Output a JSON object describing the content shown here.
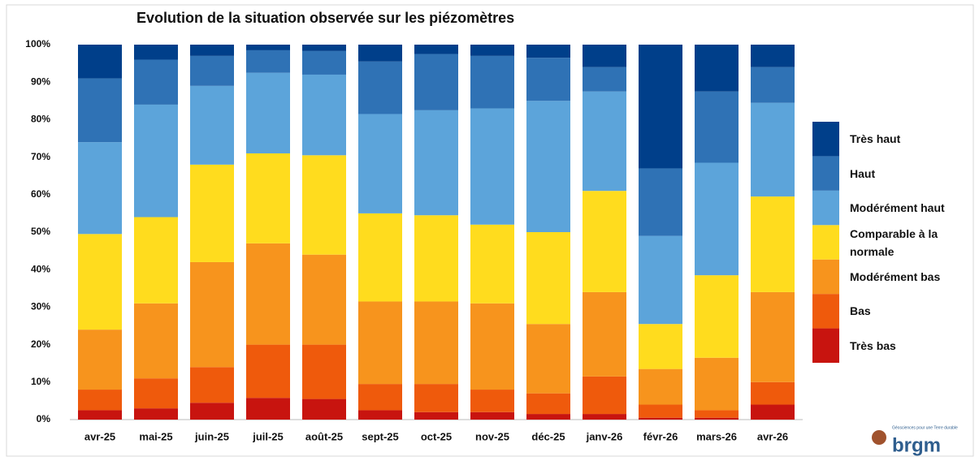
{
  "chart_data": {
    "type": "stacked_bar",
    "title": "Evolution de la situation observée sur les piézomètres",
    "categories": [
      "avr-25",
      "mai-25",
      "juin-25",
      "juil-25",
      "août-25",
      "sept-25",
      "oct-25",
      "nov-25",
      "déc-25",
      "janv-26",
      "févr-26",
      "mars-26",
      "avr-26"
    ],
    "series": [
      {
        "name": "Très bas",
        "color": "#c8140f",
        "values": [
          2.5,
          3,
          4.5,
          5.8,
          5.5,
          2.5,
          2,
          2,
          1.5,
          1.5,
          0.5,
          0.5,
          4
        ]
      },
      {
        "name": "Bas",
        "color": "#ef5a0c",
        "values": [
          5.5,
          8,
          9.5,
          14.2,
          14.5,
          7,
          7.5,
          6,
          5.5,
          10,
          3.5,
          2,
          6
        ]
      },
      {
        "name": "Modérément bas",
        "color": "#f7941d",
        "values": [
          16,
          20,
          28,
          27,
          24,
          22,
          22,
          23,
          18.5,
          22.5,
          9.5,
          14,
          24
        ]
      },
      {
        "name": "Comparable à la normale",
        "color": "#ffdc1e",
        "values": [
          25.5,
          23,
          26,
          24,
          26.5,
          23.5,
          23,
          21,
          24.5,
          27,
          12,
          22,
          25.5
        ]
      },
      {
        "name": "Modérément haut",
        "color": "#5ca4da",
        "values": [
          24.5,
          30,
          21,
          21.5,
          21.5,
          26.5,
          28,
          31,
          35,
          26.5,
          23.5,
          30,
          25
        ]
      },
      {
        "name": "Haut",
        "color": "#2f72b5",
        "values": [
          17,
          12,
          8,
          6,
          6.3,
          14,
          15,
          14,
          11.5,
          6.5,
          18,
          19,
          9.5
        ]
      },
      {
        "name": "Très haut",
        "color": "#003f8a",
        "values": [
          9,
          4,
          3,
          1.5,
          1.7,
          4.5,
          2.5,
          3,
          3.5,
          6,
          33,
          12.5,
          6
        ]
      }
    ],
    "ylim": [
      0,
      100
    ],
    "yticks": [
      {
        "value": 0,
        "label": "0%"
      },
      {
        "value": 10,
        "label": "10%"
      },
      {
        "value": 20,
        "label": "20%"
      },
      {
        "value": 30,
        "label": "30%"
      },
      {
        "value": 40,
        "label": "40%"
      },
      {
        "value": 50,
        "label": "50%"
      },
      {
        "value": 60,
        "label": "60%"
      },
      {
        "value": 70,
        "label": "70%"
      },
      {
        "value": 80,
        "label": "80%"
      },
      {
        "value": 90,
        "label": "90%"
      },
      {
        "value": 100,
        "label": "100%"
      }
    ],
    "grid": false,
    "legend": "right",
    "logo": {
      "text": "brgm",
      "tagline": "Géosciences pour une Terre durable"
    }
  }
}
